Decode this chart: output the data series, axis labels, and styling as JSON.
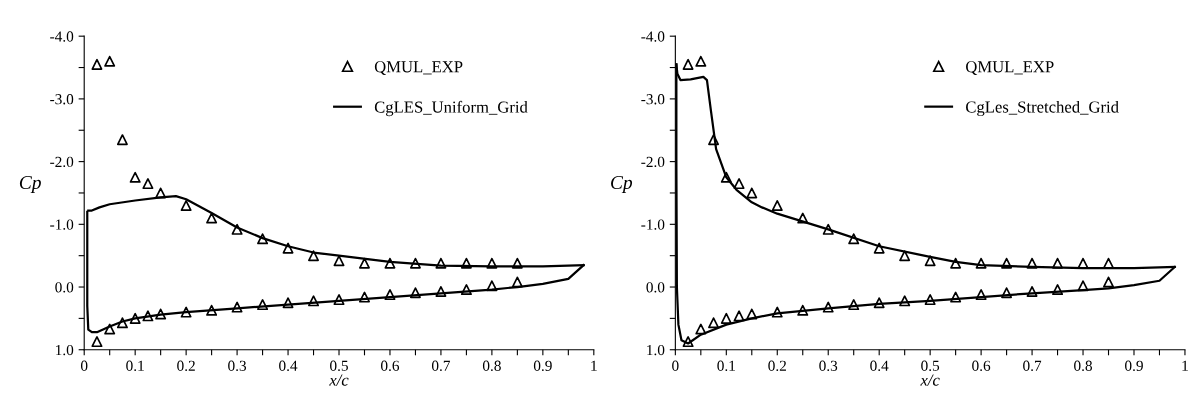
{
  "chart_data": [
    {
      "type": "line",
      "xlabel": "x/c",
      "ylabel": "Cp",
      "xlim": [
        0,
        1
      ],
      "ylim": [
        1,
        -4
      ],
      "legend": "top right",
      "grid": false,
      "xticks": [
        0,
        0.1,
        0.2,
        0.3,
        0.4,
        0.5,
        0.6,
        0.7,
        0.8,
        0.9,
        1,
        {
          "value": 0.05,
          "label": null
        },
        {
          "value": 0.15,
          "label": null
        },
        {
          "value": 0.25,
          "label": null
        },
        {
          "value": 0.35,
          "label": null
        },
        {
          "value": 0.45,
          "label": null
        },
        {
          "value": 0.55,
          "label": null
        },
        {
          "value": 0.65,
          "label": null
        },
        {
          "value": 0.75,
          "label": null
        },
        {
          "value": 0.85,
          "label": null
        },
        {
          "value": 0.95,
          "label": null
        }
      ],
      "yticks": [
        {
          "value": 1,
          "label": "1.0"
        },
        {
          "value": 0,
          "label": "0.0"
        },
        {
          "value": -1,
          "label": "-1.0"
        },
        {
          "value": -2,
          "label": "-2.0"
        },
        {
          "value": -3,
          "label": "-3.0"
        },
        {
          "value": -4,
          "label": "-4.0"
        },
        {
          "value": 0.5,
          "label": null
        },
        {
          "value": -0.5,
          "label": null
        },
        {
          "value": -1.5,
          "label": null
        },
        {
          "value": -2.5,
          "label": null
        },
        {
          "value": -3.5,
          "label": null
        }
      ],
      "series": [
        {
          "name": "QMUL_EXP",
          "type": "scatter",
          "marker": "triangle",
          "color": "#000000",
          "x": [
            0.025,
            0.05,
            0.075,
            0.1,
            0.125,
            0.15,
            0.2,
            0.25,
            0.3,
            0.35,
            0.4,
            0.45,
            0.5,
            0.55,
            0.6,
            0.65,
            0.7,
            0.75,
            0.8,
            0.85,
            0.025,
            0.05,
            0.075,
            0.1,
            0.125,
            0.15,
            0.2,
            0.25,
            0.3,
            0.35,
            0.4,
            0.45,
            0.5,
            0.55,
            0.6,
            0.65,
            0.7,
            0.75,
            0.8,
            0.85
          ],
          "values": [
            -3.55,
            -3.6,
            -2.35,
            -1.75,
            -1.65,
            -1.5,
            -1.3,
            -1.1,
            -0.92,
            -0.77,
            -0.62,
            -0.5,
            -0.42,
            -0.38,
            -0.38,
            -0.38,
            -0.38,
            -0.38,
            -0.38,
            -0.38,
            0.87,
            0.67,
            0.57,
            0.5,
            0.46,
            0.43,
            0.4,
            0.37,
            0.32,
            0.28,
            0.25,
            0.22,
            0.2,
            0.16,
            0.12,
            0.09,
            0.07,
            0.04,
            -0.02,
            -0.08
          ]
        },
        {
          "name": "CgLES_Uniform_Grid",
          "line_style": "solid",
          "color": "#000000",
          "x": [
            0.008,
            0.015,
            0.03,
            0.05,
            0.1,
            0.15,
            0.18,
            0.2,
            0.25,
            0.3,
            0.35,
            0.4,
            0.45,
            0.5,
            0.6,
            0.7,
            0.8,
            0.9,
            0.98
          ],
          "values": [
            -1.22,
            -1.22,
            -1.27,
            -1.32,
            -1.38,
            -1.43,
            -1.45,
            -1.4,
            -1.18,
            -0.95,
            -0.78,
            -0.65,
            -0.55,
            -0.5,
            -0.4,
            -0.34,
            -0.33,
            -0.33,
            -0.35
          ]
        },
        {
          "line_style": "solid",
          "color": "#000000",
          "x": [
            0.006,
            0.006,
            0.008,
            0.015,
            0.025,
            0.05,
            0.075,
            0.1,
            0.15,
            0.2,
            0.3,
            0.4,
            0.5,
            0.6,
            0.7,
            0.8,
            0.85,
            0.9,
            0.95,
            0.98
          ],
          "values": [
            -1.2,
            0.3,
            0.68,
            0.72,
            0.72,
            0.63,
            0.55,
            0.5,
            0.44,
            0.4,
            0.34,
            0.28,
            0.22,
            0.16,
            0.1,
            0.04,
            0.0,
            -0.05,
            -0.13,
            -0.35
          ]
        }
      ]
    },
    {
      "type": "line",
      "xlabel": "x/c",
      "ylabel": "Cp",
      "xlim": [
        0,
        1
      ],
      "ylim": [
        1,
        -4
      ],
      "legend": "top right",
      "grid": false,
      "xticks": [
        0,
        0.1,
        0.2,
        0.3,
        0.4,
        0.5,
        0.6,
        0.7,
        0.8,
        0.9,
        1,
        {
          "value": 0.05,
          "label": null
        },
        {
          "value": 0.15,
          "label": null
        },
        {
          "value": 0.25,
          "label": null
        },
        {
          "value": 0.35,
          "label": null
        },
        {
          "value": 0.45,
          "label": null
        },
        {
          "value": 0.55,
          "label": null
        },
        {
          "value": 0.65,
          "label": null
        },
        {
          "value": 0.75,
          "label": null
        },
        {
          "value": 0.85,
          "label": null
        },
        {
          "value": 0.95,
          "label": null
        }
      ],
      "yticks": [
        {
          "value": 1,
          "label": "1.0"
        },
        {
          "value": 0,
          "label": "0.0"
        },
        {
          "value": -1,
          "label": "-1.0"
        },
        {
          "value": -2,
          "label": "-2.0"
        },
        {
          "value": -3,
          "label": "-3.0"
        },
        {
          "value": -4,
          "label": "-4.0"
        },
        {
          "value": 0.5,
          "label": null
        },
        {
          "value": -0.5,
          "label": null
        },
        {
          "value": -1.5,
          "label": null
        },
        {
          "value": -2.5,
          "label": null
        },
        {
          "value": -3.5,
          "label": null
        }
      ],
      "series": [
        {
          "name": "QMUL_EXP",
          "type": "scatter",
          "marker": "triangle",
          "color": "#000000",
          "x": [
            0.025,
            0.05,
            0.075,
            0.1,
            0.125,
            0.15,
            0.2,
            0.25,
            0.3,
            0.35,
            0.4,
            0.45,
            0.5,
            0.55,
            0.6,
            0.65,
            0.7,
            0.75,
            0.8,
            0.85,
            0.025,
            0.05,
            0.075,
            0.1,
            0.125,
            0.15,
            0.2,
            0.25,
            0.3,
            0.35,
            0.4,
            0.45,
            0.5,
            0.55,
            0.6,
            0.65,
            0.7,
            0.75,
            0.8,
            0.85
          ],
          "values": [
            -3.55,
            -3.6,
            -2.35,
            -1.75,
            -1.65,
            -1.5,
            -1.3,
            -1.1,
            -0.92,
            -0.77,
            -0.62,
            -0.5,
            -0.42,
            -0.38,
            -0.38,
            -0.38,
            -0.38,
            -0.38,
            -0.38,
            -0.38,
            0.87,
            0.67,
            0.57,
            0.5,
            0.46,
            0.43,
            0.4,
            0.37,
            0.32,
            0.28,
            0.25,
            0.22,
            0.2,
            0.16,
            0.12,
            0.09,
            0.07,
            0.04,
            -0.02,
            -0.08
          ]
        },
        {
          "name": "CgLes_Stretched_Grid",
          "line_style": "solid",
          "color": "#000000",
          "x": [
            0.002,
            0.004,
            0.01,
            0.03,
            0.055,
            0.062,
            0.07,
            0.08,
            0.1,
            0.12,
            0.15,
            0.17,
            0.2,
            0.3,
            0.4,
            0.5,
            0.55,
            0.6,
            0.7,
            0.8,
            0.9,
            0.98
          ],
          "values": [
            -3.55,
            -3.4,
            -3.3,
            -3.31,
            -3.35,
            -3.3,
            -2.8,
            -2.2,
            -1.75,
            -1.55,
            -1.35,
            -1.27,
            -1.17,
            -0.92,
            -0.65,
            -0.48,
            -0.4,
            -0.35,
            -0.32,
            -0.3,
            -0.3,
            -0.32
          ]
        },
        {
          "line_style": "solid",
          "color": "#000000",
          "x": [
            0.002,
            0.002,
            0.003,
            0.006,
            0.012,
            0.025,
            0.05,
            0.1,
            0.15,
            0.2,
            0.3,
            0.4,
            0.5,
            0.6,
            0.7,
            0.8,
            0.85,
            0.9,
            0.95,
            0.98
          ],
          "values": [
            -3.55,
            -2.0,
            0.0,
            0.6,
            0.85,
            0.9,
            0.76,
            0.6,
            0.5,
            0.42,
            0.34,
            0.27,
            0.22,
            0.16,
            0.1,
            0.05,
            0.02,
            -0.03,
            -0.1,
            -0.32
          ]
        }
      ]
    }
  ]
}
